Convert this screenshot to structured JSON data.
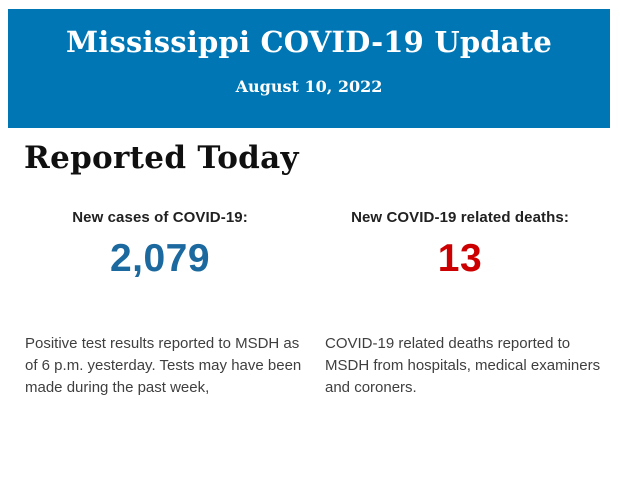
{
  "colors": {
    "banner_bg": "#0077b4",
    "banner_text": "#ffffff",
    "heading_text": "#101010",
    "label_text": "#212121",
    "body_text": "#3f3f3f",
    "cases_value": "#1b699e",
    "deaths_value": "#cc0000",
    "page_bg": "#ffffff"
  },
  "header": {
    "title": "Mississippi COVID-19 Update",
    "date": "August 10, 2022"
  },
  "main": {
    "heading": "Reported Today",
    "stats": [
      {
        "label": "New cases of COVID-19:",
        "value": "2,079",
        "description": "Positive test results reported to MSDH as of 6 p.m. yesterday. Tests may have been made during the past week,"
      },
      {
        "label": "New COVID-19 related deaths:",
        "value": "13",
        "description": "COVID-19 related deaths reported to MSDH from hospitals, medical examiners and coroners."
      }
    ]
  }
}
